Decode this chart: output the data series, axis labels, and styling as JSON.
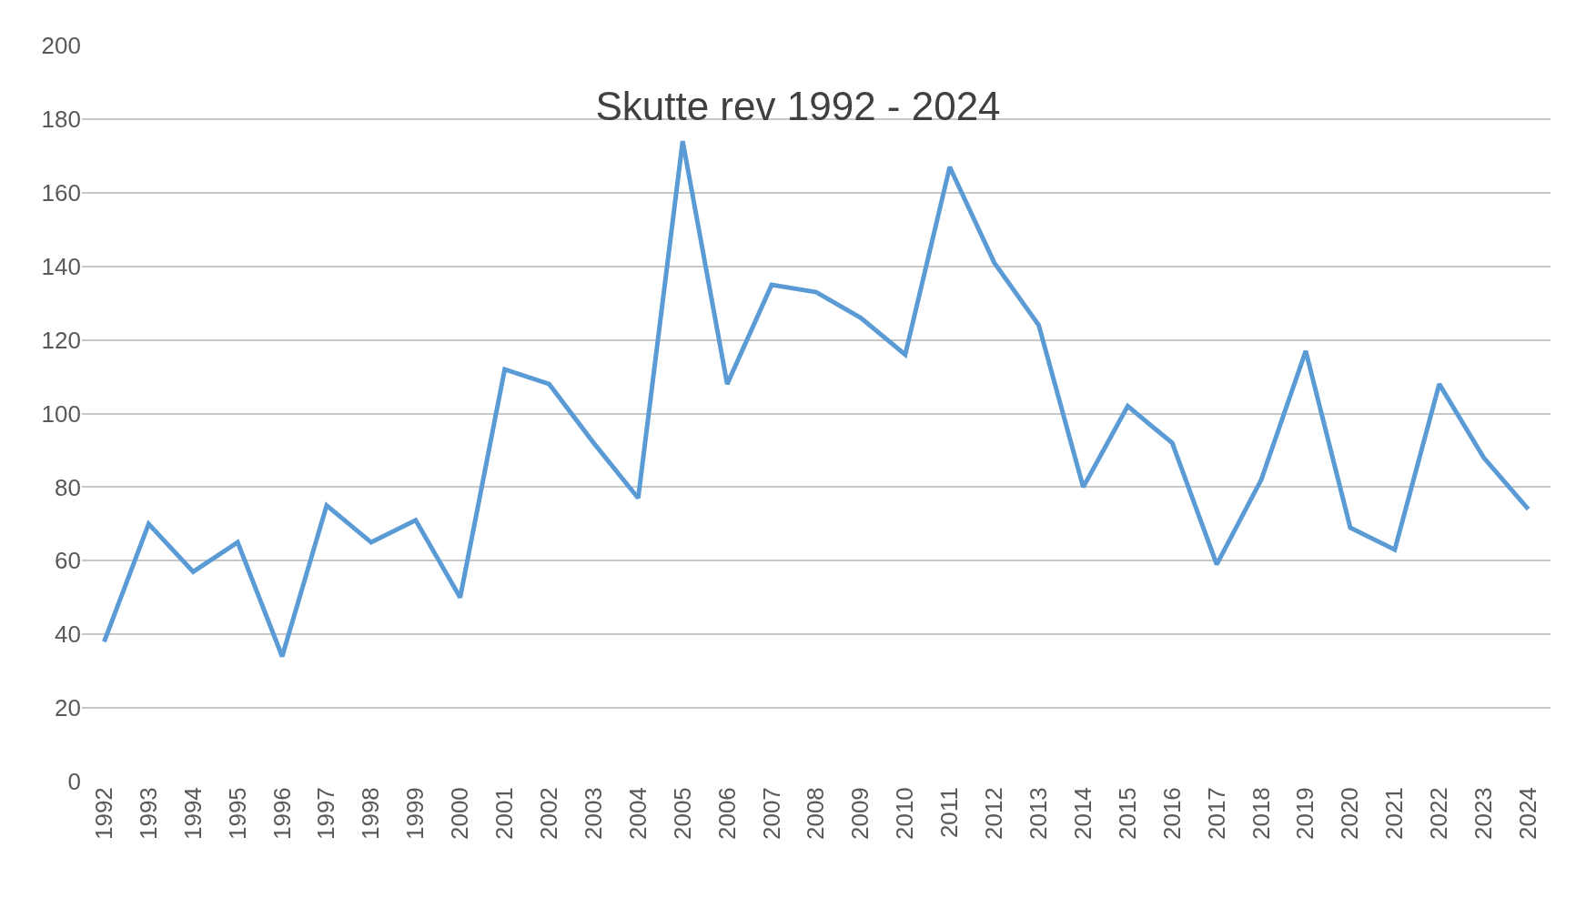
{
  "chart_data": {
    "type": "line",
    "title": "Skutte rev 1992 - 2024",
    "categories": [
      "1992",
      "1993",
      "1994",
      "1995",
      "1996",
      "1997",
      "1998",
      "1999",
      "2000",
      "2001",
      "2002",
      "2003",
      "2004",
      "2005",
      "2006",
      "2007",
      "2008",
      "2009",
      "2010",
      "2011",
      "2012",
      "2013",
      "2014",
      "2015",
      "2016",
      "2017",
      "2018",
      "2019",
      "2020",
      "2021",
      "2022",
      "2023",
      "2024"
    ],
    "series": [
      {
        "color": "#5b9bd5",
        "values": [
          38,
          70,
          57,
          65,
          34,
          75,
          65,
          71,
          50,
          112,
          108,
          92,
          77,
          174,
          108,
          135,
          133,
          126,
          116,
          167,
          141,
          124,
          80,
          102,
          92,
          59,
          82,
          117,
          69,
          63,
          108,
          88,
          74
        ]
      }
    ],
    "ylim": [
      0,
      200
    ],
    "yticks": [
      0,
      20,
      40,
      60,
      80,
      100,
      120,
      140,
      160,
      180,
      200
    ],
    "grid": "y",
    "marker": "none",
    "line_style": "solid"
  }
}
